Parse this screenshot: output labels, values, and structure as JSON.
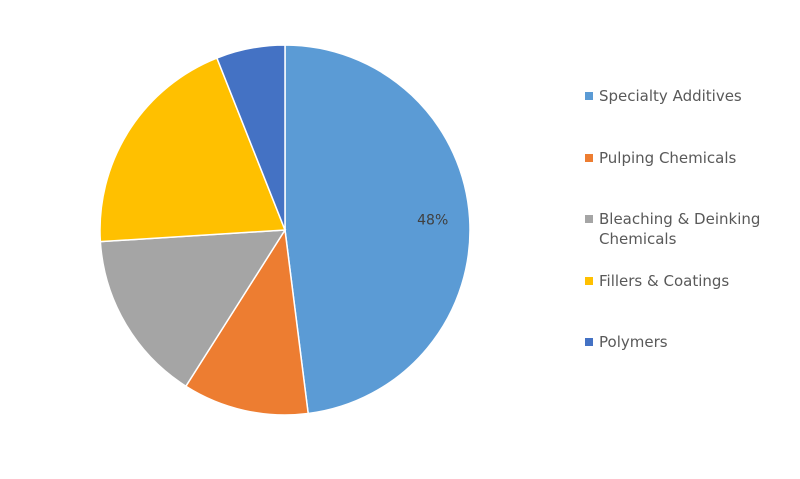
{
  "chart_data": {
    "type": "pie",
    "categories": [
      "Specialty Additives",
      "Pulping Chemicals",
      "Bleaching & Deinking Chemicals",
      "Fillers & Coatings",
      "Polymers"
    ],
    "values": [
      48,
      11,
      15,
      20,
      6
    ],
    "value_labels": [
      "48%",
      null,
      null,
      null,
      null
    ],
    "colors": [
      "#5b9bd5",
      "#ed7d31",
      "#a5a5a5",
      "#ffc000",
      "#4472c4"
    ],
    "legend": "right"
  }
}
